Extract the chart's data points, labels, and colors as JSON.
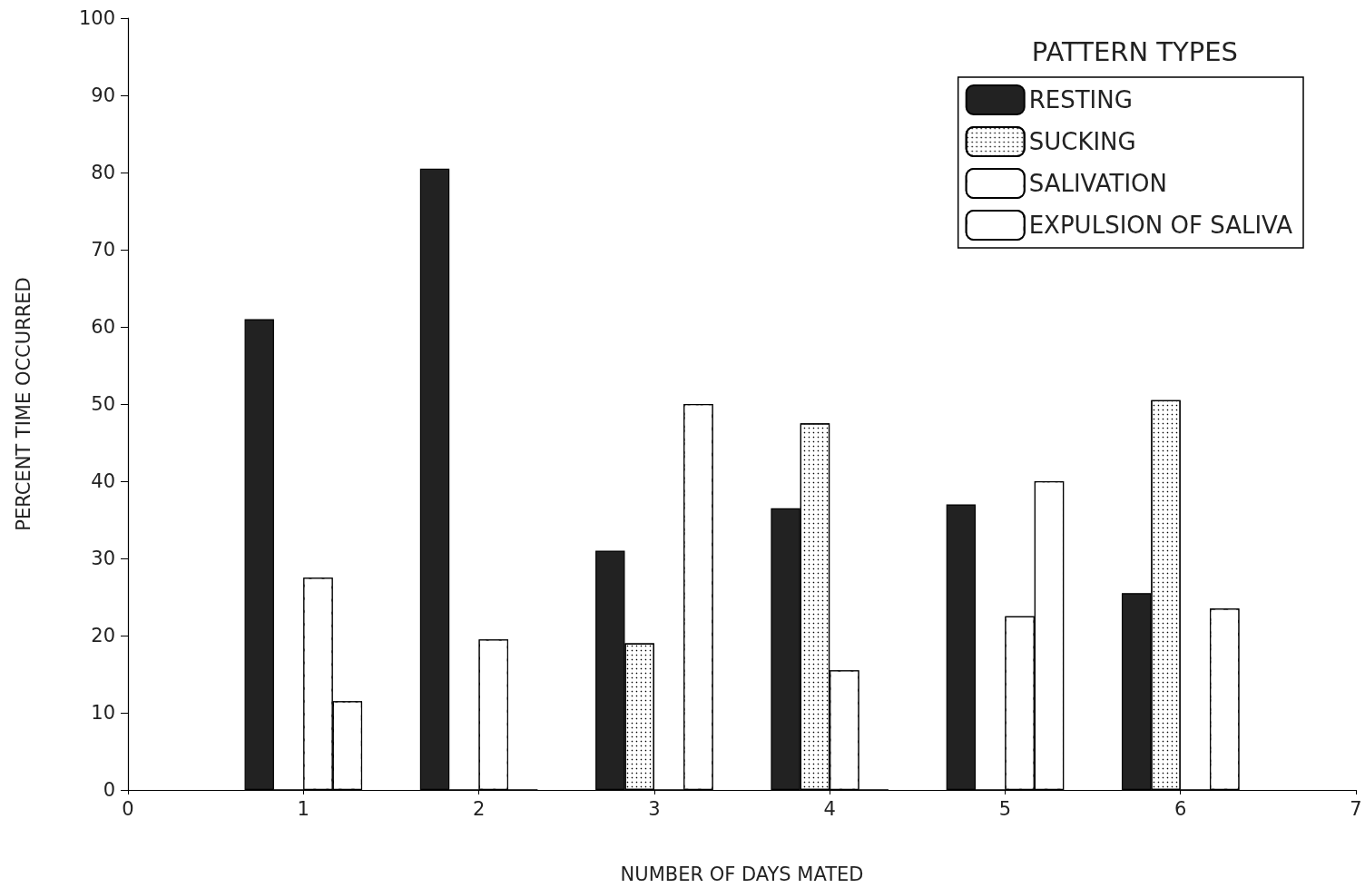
{
  "chart_data": {
    "type": "bar",
    "xlabel": "NUMBER OF DAYS MATED",
    "ylabel": "PERCENT TIME OCCURRED",
    "legend_title": "PATTERN TYPES",
    "x": [
      1,
      2,
      3,
      4,
      5,
      6
    ],
    "series": [
      {
        "name": "RESTING",
        "color": "#222222",
        "values": [
          61,
          80.5,
          31,
          36.5,
          37,
          25.5
        ]
      },
      {
        "name": "SUCKING",
        "color": "#ffffff",
        "values": [
          0,
          0,
          19,
          47.5,
          0,
          50.5
        ]
      },
      {
        "name": "SALIVATION",
        "color": "#ffffff",
        "values": [
          27.5,
          19.5,
          0,
          15.5,
          22.5,
          0
        ]
      },
      {
        "name": "EXPULSION OF SALIVA",
        "color": "#ffffff",
        "values": [
          11.5,
          0,
          50,
          0,
          40,
          23.5
        ]
      }
    ],
    "xlim": [
      0,
      7
    ],
    "xticks": [
      0,
      1,
      2,
      3,
      4,
      5,
      6,
      7
    ],
    "ylim": [
      0,
      100
    ],
    "yticks": [
      0,
      10,
      20,
      30,
      40,
      50,
      60,
      70,
      80,
      90,
      100
    ],
    "grid": false,
    "legend": "top right"
  }
}
